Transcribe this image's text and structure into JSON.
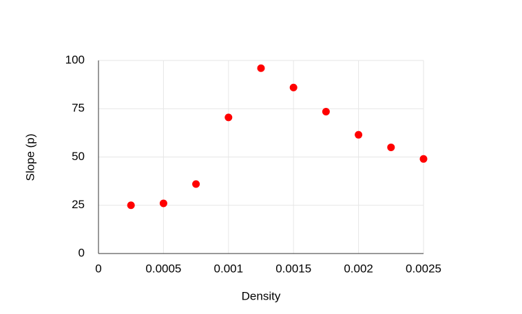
{
  "chart_data": {
    "type": "scatter",
    "x_label": "Density",
    "y_label": "Slope (p)",
    "series": [
      {
        "color": "#ff0000",
        "x": [
          0.00025,
          0.0005,
          0.00075,
          0.001,
          0.00125,
          0.0015,
          0.00175,
          0.002,
          0.00225,
          0.0025
        ],
        "values": [
          25,
          26,
          36,
          70.5,
          96,
          86,
          73.5,
          61.5,
          55,
          49
        ]
      }
    ],
    "xlim": [
      0,
      0.0025
    ],
    "xticks": [
      0,
      0.0005,
      0.001,
      0.0015,
      0.002,
      0.0025
    ],
    "ylim": [
      0,
      100
    ],
    "yticks": [
      0,
      25,
      50,
      75,
      100
    ],
    "grid": true
  }
}
